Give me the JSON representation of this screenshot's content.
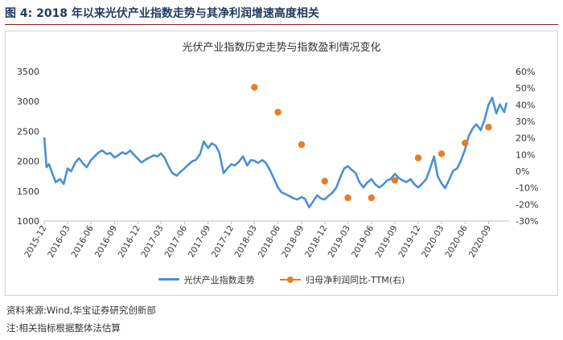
{
  "figure": {
    "heading": "图 4:  2018 年以来光伏产业指数走势与其净利润增速高度相关",
    "source": "资料来源:Wind,华宝证券研究创新部",
    "note": "注:相关指标根据整体法估算"
  },
  "chart_data": {
    "type": "line",
    "title": "光伏产业指数历史走势与指数盈利情况变化",
    "x_tick_labels": [
      "2015-12",
      "2016-03",
      "2016-06",
      "2016-09",
      "2016-12",
      "2017-03",
      "2017-06",
      "2017-09",
      "2017-12",
      "2018-03",
      "2018-06",
      "2018-09",
      "2018-12",
      "2019-03",
      "2019-06",
      "2019-09",
      "2019-12",
      "2020-03",
      "2020-06",
      "2020-09"
    ],
    "y_left": {
      "ticks": [
        1000,
        1500,
        2000,
        2500,
        3000,
        3500
      ],
      "range": [
        1000,
        3500
      ]
    },
    "y_right": {
      "ticks": [
        "-30%",
        "-20%",
        "-10%",
        "0%",
        "10%",
        "20%",
        "30%",
        "40%",
        "50%",
        "60%"
      ],
      "range": [
        -30,
        60
      ]
    },
    "grid": false,
    "legend_placement": "bottom",
    "series": [
      {
        "name": "光伏产业指数走势",
        "axis": "left",
        "color": "#4a8fd6",
        "points": [
          [
            "2015-12",
            2400
          ],
          [
            "2015-12-10",
            1900
          ],
          [
            "2015-12-20",
            1950
          ],
          [
            "2016-01",
            1800
          ],
          [
            "2016-01-15",
            1650
          ],
          [
            "2016-02",
            1700
          ],
          [
            "2016-02-15",
            1620
          ],
          [
            "2016-03",
            1880
          ],
          [
            "2016-03-15",
            1830
          ],
          [
            "2016-04",
            1980
          ],
          [
            "2016-04-15",
            2050
          ],
          [
            "2016-05",
            1960
          ],
          [
            "2016-05-15",
            1900
          ],
          [
            "2016-06",
            2020
          ],
          [
            "2016-06-15",
            2080
          ],
          [
            "2016-07",
            2150
          ],
          [
            "2016-07-15",
            2180
          ],
          [
            "2016-08",
            2120
          ],
          [
            "2016-08-15",
            2140
          ],
          [
            "2016-09",
            2060
          ],
          [
            "2016-09-15",
            2100
          ],
          [
            "2016-10",
            2150
          ],
          [
            "2016-10-15",
            2120
          ],
          [
            "2016-11",
            2180
          ],
          [
            "2016-11-15",
            2110
          ],
          [
            "2016-12",
            2040
          ],
          [
            "2016-12-15",
            1980
          ],
          [
            "2017-01",
            2030
          ],
          [
            "2017-01-15",
            2060
          ],
          [
            "2017-02",
            2100
          ],
          [
            "2017-02-15",
            2080
          ],
          [
            "2017-03",
            2130
          ],
          [
            "2017-03-15",
            2060
          ],
          [
            "2017-04",
            1900
          ],
          [
            "2017-04-15",
            1800
          ],
          [
            "2017-05",
            1760
          ],
          [
            "2017-05-15",
            1820
          ],
          [
            "2017-06",
            1880
          ],
          [
            "2017-06-15",
            1940
          ],
          [
            "2017-07",
            2000
          ],
          [
            "2017-07-15",
            2020
          ],
          [
            "2017-08",
            2120
          ],
          [
            "2017-08-15",
            2330
          ],
          [
            "2017-09",
            2220
          ],
          [
            "2017-09-15",
            2300
          ],
          [
            "2017-10",
            2260
          ],
          [
            "2017-10-15",
            2140
          ],
          [
            "2017-11",
            1800
          ],
          [
            "2017-11-15",
            1880
          ],
          [
            "2017-12",
            1950
          ],
          [
            "2017-12-15",
            1930
          ],
          [
            "2018-01",
            2000
          ],
          [
            "2018-01-15",
            2080
          ],
          [
            "2018-02",
            1930
          ],
          [
            "2018-02-15",
            2020
          ],
          [
            "2018-03",
            2010
          ],
          [
            "2018-03-15",
            1970
          ],
          [
            "2018-04",
            2020
          ],
          [
            "2018-04-15",
            1970
          ],
          [
            "2018-05",
            1850
          ],
          [
            "2018-05-15",
            1720
          ],
          [
            "2018-06",
            1560
          ],
          [
            "2018-06-15",
            1480
          ],
          [
            "2018-07",
            1450
          ],
          [
            "2018-07-15",
            1420
          ],
          [
            "2018-08",
            1380
          ],
          [
            "2018-08-15",
            1360
          ],
          [
            "2018-09",
            1400
          ],
          [
            "2018-09-15",
            1370
          ],
          [
            "2018-10",
            1230
          ],
          [
            "2018-10-15",
            1320
          ],
          [
            "2018-11",
            1430
          ],
          [
            "2018-11-15",
            1380
          ],
          [
            "2018-12",
            1360
          ],
          [
            "2018-12-15",
            1420
          ],
          [
            "2019-01",
            1480
          ],
          [
            "2019-01-15",
            1560
          ],
          [
            "2019-02",
            1750
          ],
          [
            "2019-02-15",
            1880
          ],
          [
            "2019-03",
            1920
          ],
          [
            "2019-03-15",
            1860
          ],
          [
            "2019-04",
            1800
          ],
          [
            "2019-04-15",
            1650
          ],
          [
            "2019-05",
            1560
          ],
          [
            "2019-05-15",
            1640
          ],
          [
            "2019-06",
            1700
          ],
          [
            "2019-06-15",
            1620
          ],
          [
            "2019-07",
            1560
          ],
          [
            "2019-07-15",
            1600
          ],
          [
            "2019-08",
            1680
          ],
          [
            "2019-08-15",
            1700
          ],
          [
            "2019-09",
            1790
          ],
          [
            "2019-09-15",
            1720
          ],
          [
            "2019-10",
            1680
          ],
          [
            "2019-10-15",
            1650
          ],
          [
            "2019-11",
            1700
          ],
          [
            "2019-11-15",
            1620
          ],
          [
            "2019-12",
            1560
          ],
          [
            "2019-12-15",
            1620
          ],
          [
            "2020-01",
            1700
          ],
          [
            "2020-01-15",
            1860
          ],
          [
            "2020-02",
            2080
          ],
          [
            "2020-02-15",
            1750
          ],
          [
            "2020-03",
            1630
          ],
          [
            "2020-03-15",
            1550
          ],
          [
            "2020-04",
            1700
          ],
          [
            "2020-04-15",
            1840
          ],
          [
            "2020-05",
            1880
          ],
          [
            "2020-05-15",
            2000
          ],
          [
            "2020-06",
            2200
          ],
          [
            "2020-06-15",
            2420
          ],
          [
            "2020-07",
            2550
          ],
          [
            "2020-07-15",
            2620
          ],
          [
            "2020-08",
            2520
          ],
          [
            "2020-08-15",
            2680
          ],
          [
            "2020-09",
            2950
          ],
          [
            "2020-09-15",
            3060
          ],
          [
            "2020-10",
            2800
          ],
          [
            "2020-10-15",
            2950
          ],
          [
            "2020-11",
            2820
          ],
          [
            "2020-11-10",
            2980
          ]
        ]
      },
      {
        "name": "归母净利润同比-TTM(右)",
        "axis": "right",
        "color": "#e67e22",
        "points": [
          [
            "2018-03",
            50.5
          ],
          [
            "2018-06",
            35.5
          ],
          [
            "2018-09",
            16
          ],
          [
            "2018-12",
            -6
          ],
          [
            "2019-03",
            -16
          ],
          [
            "2019-06",
            -16
          ],
          [
            "2019-09",
            -5.5
          ],
          [
            "2019-12",
            8
          ],
          [
            "2020-03",
            10.5
          ],
          [
            "2020-06",
            17
          ],
          [
            "2020-09",
            26.5
          ]
        ]
      }
    ]
  }
}
